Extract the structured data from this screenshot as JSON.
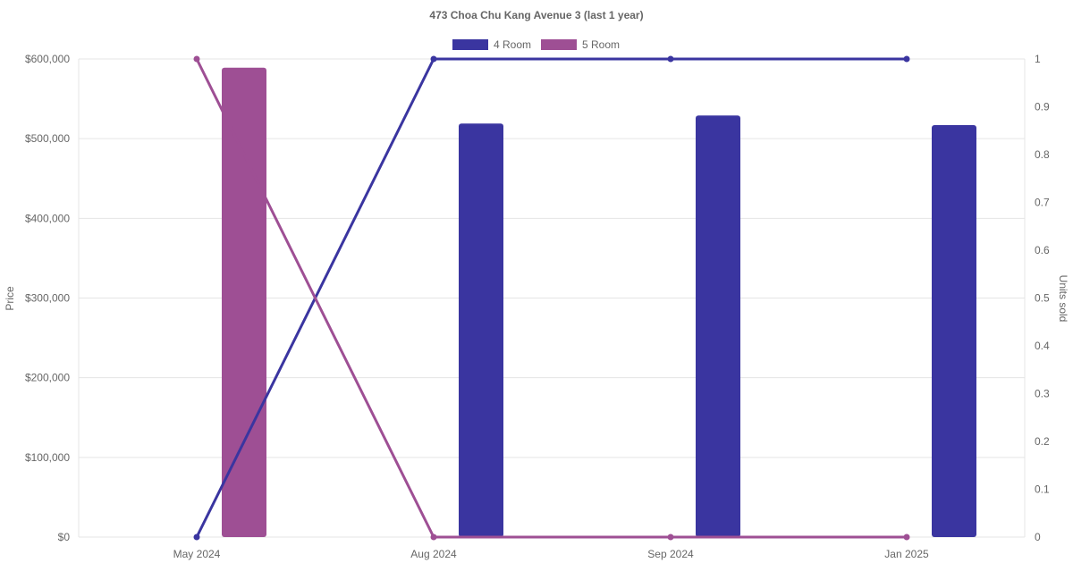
{
  "chart_data": {
    "type": "bar",
    "title": "473 Choa Chu Kang Avenue 3 (last 1 year)",
    "categories": [
      "May 2024",
      "Aug 2024",
      "Sep 2024",
      "Jan 2025"
    ],
    "y_left": {
      "label": "Price",
      "range": [
        0,
        600000
      ],
      "ticks": [
        "$0",
        "$100,000",
        "$200,000",
        "$300,000",
        "$400,000",
        "$500,000",
        "$600,000"
      ]
    },
    "y_right": {
      "label": "Units sold",
      "range": [
        0,
        1
      ],
      "ticks": [
        "0",
        "0.1",
        "0.2",
        "0.3",
        "0.4",
        "0.5",
        "0.6",
        "0.7",
        "0.8",
        "0.9",
        "1"
      ]
    },
    "grid": true,
    "legend_position": "top-center",
    "series": [
      {
        "name": "4 Room",
        "color": "#3a35a0",
        "price": [
          null,
          519000,
          529000,
          517000
        ],
        "units_sold": [
          0,
          1,
          1,
          1
        ]
      },
      {
        "name": "5 Room",
        "color": "#9e4f94",
        "price": [
          589000,
          null,
          null,
          null
        ],
        "units_sold": [
          1,
          0,
          0,
          0
        ]
      }
    ]
  }
}
